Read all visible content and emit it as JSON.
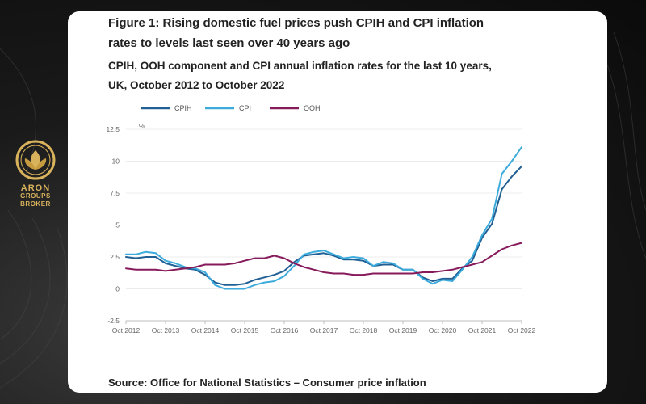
{
  "brand": {
    "line1": "ARON",
    "line2": "GROUPS",
    "line3": "BROKER",
    "color": "#d9b35c"
  },
  "figure": {
    "title_line1": "Figure 1: Rising domestic fuel prices push CPIH and CPI inflation",
    "title_line2": "rates to levels last seen over 40 years ago",
    "subtitle_line1": "CPIH, OOH component and CPI annual inflation rates for the last 10 years,",
    "subtitle_line2": "UK, October 2012 to October 2022",
    "source": "Source: Office for National Statistics – Consumer price inflation"
  },
  "chart_data": {
    "type": "line",
    "title": "CPIH, OOH component and CPI annual inflation rates for the last 10 years, UK, October 2012 to October 2022",
    "ylabel": "%",
    "xlabel": "",
    "ylim": [
      -2.5,
      12.5
    ],
    "yticks": [
      "12.5",
      "10",
      "7.5",
      "5",
      "2.5",
      "0",
      "-2.5"
    ],
    "ytick_values": [
      12.5,
      10,
      7.5,
      5,
      2.5,
      0,
      -2.5
    ],
    "x_range": [
      2012.75,
      2022.75
    ],
    "xticks": [
      "Oct 2012",
      "Oct 2013",
      "Oct 2014",
      "Oct 2015",
      "Oct 2016",
      "Oct 2017",
      "Oct 2018",
      "Oct 2019",
      "Oct 2020",
      "Oct 2021",
      "Oct 2022"
    ],
    "xtick_values": [
      2012.75,
      2013.75,
      2014.75,
      2015.75,
      2016.75,
      2017.75,
      2018.75,
      2019.75,
      2020.75,
      2021.75,
      2022.75
    ],
    "legend_position": "top-left",
    "series": [
      {
        "name": "CPIH",
        "color": "#206095",
        "x": [
          2012.75,
          2013.0,
          2013.25,
          2013.5,
          2013.75,
          2014.0,
          2014.25,
          2014.5,
          2014.75,
          2015.0,
          2015.25,
          2015.5,
          2015.75,
          2016.0,
          2016.25,
          2016.5,
          2016.75,
          2017.0,
          2017.25,
          2017.5,
          2017.75,
          2018.0,
          2018.25,
          2018.5,
          2018.75,
          2019.0,
          2019.25,
          2019.5,
          2019.75,
          2020.0,
          2020.25,
          2020.5,
          2020.75,
          2021.0,
          2021.25,
          2021.5,
          2021.75,
          2022.0,
          2022.25,
          2022.5,
          2022.75
        ],
        "values": [
          2.5,
          2.4,
          2.5,
          2.5,
          2.0,
          1.8,
          1.6,
          1.5,
          1.1,
          0.5,
          0.3,
          0.3,
          0.4,
          0.7,
          0.9,
          1.1,
          1.4,
          2.1,
          2.6,
          2.7,
          2.8,
          2.6,
          2.3,
          2.3,
          2.2,
          1.8,
          1.9,
          1.9,
          1.5,
          1.5,
          0.9,
          0.6,
          0.8,
          0.8,
          1.6,
          2.2,
          4.0,
          5.1,
          7.8,
          8.8,
          9.6
        ]
      },
      {
        "name": "CPI",
        "color": "#3cabdc",
        "x": [
          2012.75,
          2013.0,
          2013.25,
          2013.5,
          2013.75,
          2014.0,
          2014.25,
          2014.5,
          2014.75,
          2015.0,
          2015.25,
          2015.5,
          2015.75,
          2016.0,
          2016.25,
          2016.5,
          2016.75,
          2017.0,
          2017.25,
          2017.5,
          2017.75,
          2018.0,
          2018.25,
          2018.5,
          2018.75,
          2019.0,
          2019.25,
          2019.5,
          2019.75,
          2020.0,
          2020.25,
          2020.5,
          2020.75,
          2021.0,
          2021.25,
          2021.5,
          2021.75,
          2022.0,
          2022.25,
          2022.5,
          2022.75
        ],
        "values": [
          2.7,
          2.7,
          2.9,
          2.8,
          2.2,
          2.0,
          1.7,
          1.6,
          1.3,
          0.3,
          0.0,
          0.0,
          0.0,
          0.3,
          0.5,
          0.6,
          1.0,
          1.8,
          2.7,
          2.9,
          3.0,
          2.7,
          2.4,
          2.5,
          2.4,
          1.8,
          2.1,
          2.0,
          1.5,
          1.5,
          0.8,
          0.4,
          0.7,
          0.6,
          1.5,
          2.5,
          4.2,
          5.5,
          9.0,
          10.0,
          11.1
        ]
      },
      {
        "name": "OOH",
        "color": "#871a5b",
        "x": [
          2012.75,
          2013.0,
          2013.25,
          2013.5,
          2013.75,
          2014.0,
          2014.25,
          2014.5,
          2014.75,
          2015.0,
          2015.25,
          2015.5,
          2015.75,
          2016.0,
          2016.25,
          2016.5,
          2016.75,
          2017.0,
          2017.25,
          2017.5,
          2017.75,
          2018.0,
          2018.25,
          2018.5,
          2018.75,
          2019.0,
          2019.25,
          2019.5,
          2019.75,
          2020.0,
          2020.25,
          2020.5,
          2020.75,
          2021.0,
          2021.25,
          2021.5,
          2021.75,
          2022.0,
          2022.25,
          2022.5,
          2022.75
        ],
        "values": [
          1.6,
          1.5,
          1.5,
          1.5,
          1.4,
          1.5,
          1.6,
          1.7,
          1.9,
          1.9,
          1.9,
          2.0,
          2.2,
          2.4,
          2.4,
          2.6,
          2.4,
          2.0,
          1.7,
          1.5,
          1.3,
          1.2,
          1.2,
          1.1,
          1.1,
          1.2,
          1.2,
          1.2,
          1.2,
          1.2,
          1.3,
          1.3,
          1.4,
          1.5,
          1.7,
          1.9,
          2.1,
          2.6,
          3.1,
          3.4,
          3.6
        ]
      }
    ]
  }
}
